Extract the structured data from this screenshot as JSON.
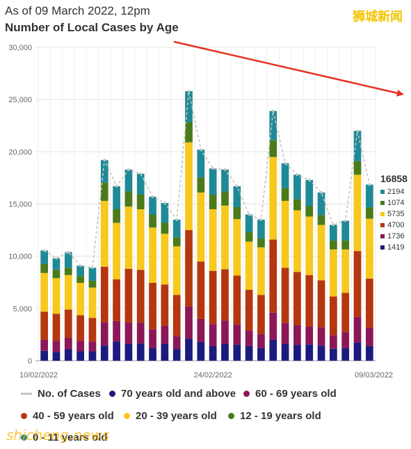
{
  "header": {
    "subtitle": "As of 09 March 2022, 12pm",
    "title": "Number of Local Cases by Age"
  },
  "watermark": {
    "top_right": "狮城新闻",
    "bottom_left": "shicheng.news"
  },
  "colors": {
    "age_70_plus": "#1b1b7e",
    "age_60_69": "#8b1757",
    "age_40_59": "#b5370f",
    "age_20_39": "#f7c81d",
    "age_12_19": "#4b7a1a",
    "age_0_11": "#1f8a97",
    "total_line": "#c4c4c4",
    "arrow": "#e53020"
  },
  "side_panel": {
    "total": "16858",
    "items": [
      {
        "value": "2194",
        "color": "#1f8a97"
      },
      {
        "value": "1074",
        "color": "#4b7a1a"
      },
      {
        "value": "5735",
        "color": "#f7c81d"
      },
      {
        "value": "4700",
        "color": "#b5370f"
      },
      {
        "value": "1736",
        "color": "#8b1757"
      },
      {
        "value": "1419",
        "color": "#1b1b7e"
      }
    ]
  },
  "legend": {
    "cases": "No. of Cases",
    "age_70_plus": "70 years old and above",
    "age_60_69": "60 - 69 years old",
    "age_40_59": "40 - 59 years old",
    "age_20_39": "20 - 39 years old",
    "age_12_19": "12 - 19 years old",
    "age_0_11": "0 - 11 years old"
  },
  "chart_data": {
    "type": "bar",
    "stacked": true,
    "overlay_line": "No. of Cases",
    "ylim": [
      0,
      30000
    ],
    "yticks": [
      0,
      5000,
      10000,
      15000,
      20000,
      25000,
      30000
    ],
    "ytick_labels": [
      "0",
      "5,000",
      "10,000",
      "15,000",
      "20,000",
      "25,000",
      "30,000"
    ],
    "xtick_labels": [
      {
        "index": 0,
        "label": "10/02/2022"
      },
      {
        "index": 14,
        "label": "24/02/2022"
      },
      {
        "index": 27,
        "label": "09/03/2022"
      }
    ],
    "categories": [
      "10/02",
      "11/02",
      "12/02",
      "13/02",
      "14/02",
      "15/02",
      "16/02",
      "17/02",
      "18/02",
      "19/02",
      "20/02",
      "21/02",
      "22/02",
      "23/02",
      "24/02",
      "25/02",
      "26/02",
      "27/02",
      "28/02",
      "01/03",
      "02/03",
      "03/03",
      "04/03",
      "05/03",
      "06/03",
      "07/03",
      "08/03",
      "09/03"
    ],
    "totals": [
      10550,
      9800,
      10400,
      9100,
      8900,
      19200,
      16700,
      18300,
      17900,
      15700,
      15100,
      13500,
      25800,
      20200,
      18400,
      18300,
      16700,
      14000,
      13500,
      23900,
      18900,
      17800,
      17300,
      16100,
      13000,
      13400,
      22000,
      16858
    ],
    "series": [
      {
        "name": "70 years old and above",
        "values": [
          950,
          850,
          1100,
          900,
          900,
          1450,
          1850,
          1600,
          1650,
          1200,
          1600,
          1100,
          2100,
          1800,
          1400,
          1600,
          1550,
          1400,
          1200,
          2000,
          1600,
          1500,
          1550,
          1450,
          1150,
          1200,
          1750,
          1419
        ]
      },
      {
        "name": "60 - 69 years old",
        "values": [
          1050,
          1050,
          1100,
          1000,
          950,
          2200,
          1950,
          2050,
          2000,
          1800,
          1750,
          1250,
          3100,
          2200,
          2100,
          2250,
          1900,
          1500,
          1350,
          2600,
          2000,
          1900,
          1750,
          1750,
          1300,
          1550,
          2450,
          1736
        ]
      },
      {
        "name": "40 - 59 years old",
        "values": [
          2700,
          2600,
          2700,
          2450,
          2250,
          5350,
          4000,
          5150,
          5050,
          4450,
          3950,
          3950,
          7300,
          5500,
          5100,
          4900,
          4700,
          3900,
          3750,
          7000,
          5300,
          5100,
          4900,
          4500,
          3700,
          3750,
          6300,
          4700
        ]
      },
      {
        "name": "20 - 39 years old",
        "values": [
          3700,
          3400,
          3300,
          3100,
          2900,
          6300,
          5400,
          5950,
          5800,
          5300,
          4850,
          4650,
          8400,
          6600,
          5900,
          6100,
          5400,
          4600,
          4550,
          7900,
          6400,
          5900,
          5600,
          5300,
          4500,
          4150,
          7300,
          5735
        ]
      },
      {
        "name": "12 - 19 years old",
        "values": [
          850,
          800,
          700,
          650,
          650,
          1750,
          1300,
          1450,
          1400,
          1250,
          1050,
          850,
          1950,
          1450,
          1400,
          1350,
          1150,
          900,
          850,
          1600,
          1200,
          1050,
          1000,
          950,
          850,
          850,
          1300,
          1074
        ]
      },
      {
        "name": "0 - 11 years old",
        "values": [
          1300,
          1100,
          1500,
          1000,
          1250,
          2150,
          2200,
          2100,
          2000,
          1700,
          1900,
          1700,
          2950,
          2650,
          2500,
          2100,
          2000,
          1700,
          1800,
          2800,
          2400,
          2350,
          2500,
          2150,
          1500,
          1900,
          2900,
          2194
        ]
      }
    ]
  }
}
